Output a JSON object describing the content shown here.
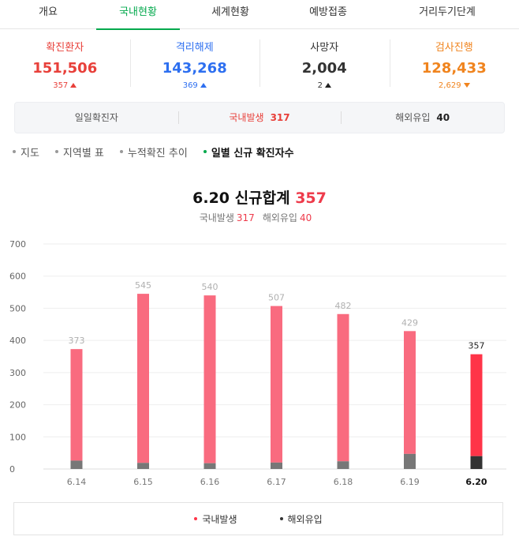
{
  "tabs": [
    {
      "label": "개요"
    },
    {
      "label": "국내현황",
      "active": true
    },
    {
      "label": "세계현황"
    },
    {
      "label": "예방접종"
    },
    {
      "label": "거리두기단계"
    }
  ],
  "stats": {
    "confirmed": {
      "label": "확진환자",
      "value": "151,506",
      "change": "357",
      "direction": "up"
    },
    "released": {
      "label": "격리해제",
      "value": "143,268",
      "change": "369",
      "direction": "up"
    },
    "deaths": {
      "label": "사망자",
      "value": "2,004",
      "change": "2",
      "direction": "up"
    },
    "testing": {
      "label": "검사진행",
      "value": "128,433",
      "change": "2,629",
      "direction": "down"
    }
  },
  "daily": {
    "label": "일일확진자",
    "domestic_label": "국내발생",
    "domestic_value": "317",
    "overseas_label": "해외유입",
    "overseas_value": "40"
  },
  "subnav": [
    {
      "label": "지도"
    },
    {
      "label": "지역별 표"
    },
    {
      "label": "누적확진 추이"
    },
    {
      "label": "일별 신규 확진자수",
      "active": true
    }
  ],
  "header": {
    "title_prefix": "6.20 신규합계",
    "title_value": "357",
    "sub_domestic_label": "국내발생",
    "sub_domestic_value": "317",
    "sub_overseas_label": "해외유입",
    "sub_overseas_value": "40"
  },
  "colors": {
    "accent_green": "#03a94d",
    "domestic_bar": "#f96b7f",
    "domestic_bar_current": "#ff3448",
    "overseas_bar": "#777777",
    "overseas_bar_current": "#333333",
    "red": "#e8403a",
    "blue": "#2d6ff0",
    "orange": "#f0841e"
  },
  "chart_data": {
    "type": "bar",
    "stacked": true,
    "categories": [
      "6.14",
      "6.15",
      "6.16",
      "6.17",
      "6.18",
      "6.19",
      "6.20"
    ],
    "totals": [
      373,
      545,
      540,
      507,
      482,
      429,
      357
    ],
    "series": [
      {
        "name": "국내발생",
        "values": [
          347,
          526,
          522,
          487,
          458,
          382,
          317
        ]
      },
      {
        "name": "해외유입",
        "values": [
          26,
          19,
          18,
          20,
          24,
          47,
          40
        ]
      }
    ],
    "yticks": [
      0,
      100,
      200,
      300,
      400,
      500,
      600,
      700
    ],
    "ylim": [
      0,
      700
    ],
    "highlight_category": "6.20",
    "grid": true,
    "legend": "bottom"
  }
}
